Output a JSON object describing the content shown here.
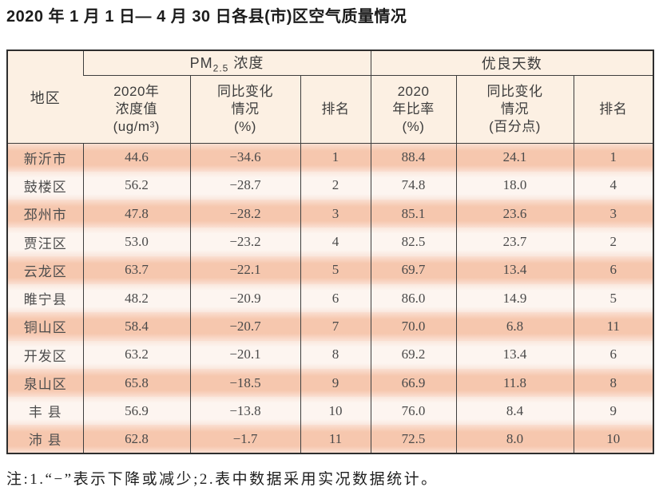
{
  "page": {
    "title": "2020 年 1 月 1 日— 4 月 30 日各县(市)区空气质量情况",
    "footnote": "注:1.“−”表示下降或减少;2.表中数据采用实况数据统计。"
  },
  "colors": {
    "stripe_dark": "#f6c7ae",
    "stripe_light": "#fdf5f0",
    "header_bg": "#fcf0e3",
    "border": "#3e3e3e"
  },
  "table": {
    "corner_header": "地区",
    "group_headers": {
      "pm25": {
        "prefix": "PM",
        "sub": "2.5",
        "suffix": " 浓度"
      },
      "good_days": "优良天数"
    },
    "sub_headers": [
      "2020年\n浓度值\n(ug/m³)",
      "同比变化\n情况\n(%)",
      "排名",
      "2020\n年比率\n(%)",
      "同比变化\n情况\n(百分点)",
      "排名"
    ],
    "rows": [
      [
        "新沂市",
        "44.6",
        "−34.6",
        "1",
        "88.4",
        "24.1",
        "1"
      ],
      [
        "鼓楼区",
        "56.2",
        "−28.7",
        "2",
        "74.8",
        "18.0",
        "4"
      ],
      [
        "邳州市",
        "47.8",
        "−28.2",
        "3",
        "85.1",
        "23.6",
        "3"
      ],
      [
        "贾汪区",
        "53.0",
        "−23.2",
        "4",
        "82.5",
        "23.7",
        "2"
      ],
      [
        "云龙区",
        "63.7",
        "−22.1",
        "5",
        "69.7",
        "13.4",
        "6"
      ],
      [
        "睢宁县",
        "48.2",
        "−20.9",
        "6",
        "86.0",
        "14.9",
        "5"
      ],
      [
        "铜山区",
        "58.4",
        "−20.7",
        "7",
        "70.0",
        "6.8",
        "11"
      ],
      [
        "开发区",
        "63.2",
        "−20.1",
        "8",
        "69.2",
        "13.4",
        "6"
      ],
      [
        "泉山区",
        "65.8",
        "−18.5",
        "9",
        "66.9",
        "11.8",
        "8"
      ],
      [
        "丰 县",
        "56.9",
        "−13.8",
        "10",
        "76.0",
        "8.4",
        "9"
      ],
      [
        "沛 县",
        "62.8",
        "−1.7",
        "11",
        "72.5",
        "8.0",
        "10"
      ]
    ]
  }
}
